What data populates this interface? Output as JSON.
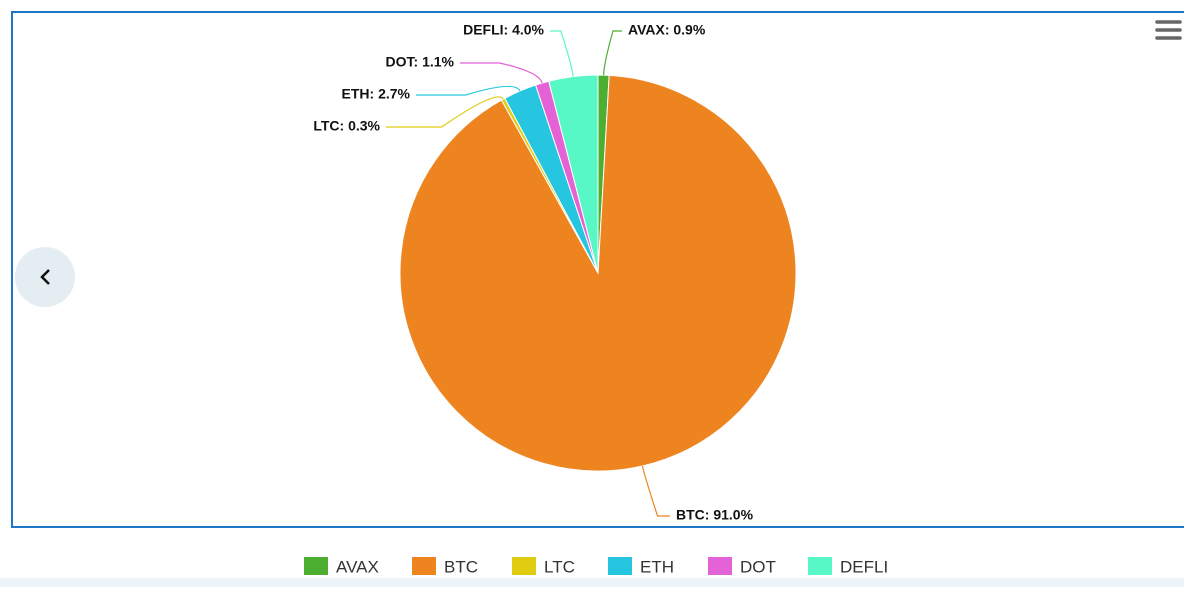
{
  "chart_data": {
    "type": "pie",
    "categories": [
      "AVAX",
      "BTC",
      "LTC",
      "ETH",
      "DOT",
      "DEFLI"
    ],
    "values": [
      0.9,
      91.0,
      0.3,
      2.7,
      1.1,
      4.0
    ],
    "value_labels": [
      "AVAX: 0.9%",
      "BTC: 91.0%",
      "LTC: 0.3%",
      "ETH: 2.7%",
      "DOT: 1.1%",
      "DEFLI: 4.0%"
    ],
    "colors": [
      "#4caf32",
      "#ee8420",
      "#e0cc10",
      "#26c6e0",
      "#e461d6",
      "#57f7c6"
    ]
  }
}
